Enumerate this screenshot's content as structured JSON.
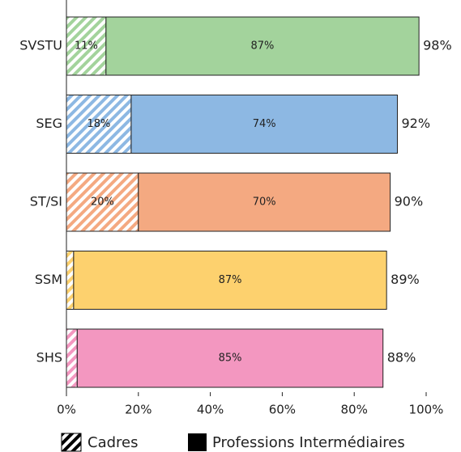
{
  "chart_data": {
    "type": "stacked-barh",
    "categories": [
      "SVSTU",
      "SEG",
      "ST/SI",
      "SSM",
      "SHS"
    ],
    "category_colors": [
      "#a3d39c",
      "#8db8e3",
      "#f4a981",
      "#fdd16e",
      "#f397c0"
    ],
    "series": [
      {
        "name": "Cadres",
        "color": "#000000",
        "values": [
          11,
          18,
          20,
          2,
          3
        ],
        "value_labels": [
          "11%",
          "18%",
          "20%",
          null,
          null
        ]
      },
      {
        "name": "Professions Intermédiaires",
        "color": "#000000",
        "values": [
          87,
          74,
          70,
          87,
          85
        ],
        "value_labels": [
          "87%",
          "74%",
          "70%",
          "87%",
          "85%"
        ]
      }
    ],
    "totals": [
      98,
      92,
      90,
      89,
      88
    ],
    "total_labels": [
      "98%",
      "92%",
      "90%",
      "89%",
      "88%"
    ],
    "xlim": [
      0,
      100
    ],
    "xticks": [
      {
        "value": 0,
        "label": "0%"
      },
      {
        "value": 20,
        "label": "20%"
      },
      {
        "value": 40,
        "label": "40%"
      },
      {
        "value": 60,
        "label": "60%"
      },
      {
        "value": 80,
        "label": "80%"
      },
      {
        "value": 100,
        "label": "100%"
      }
    ]
  }
}
